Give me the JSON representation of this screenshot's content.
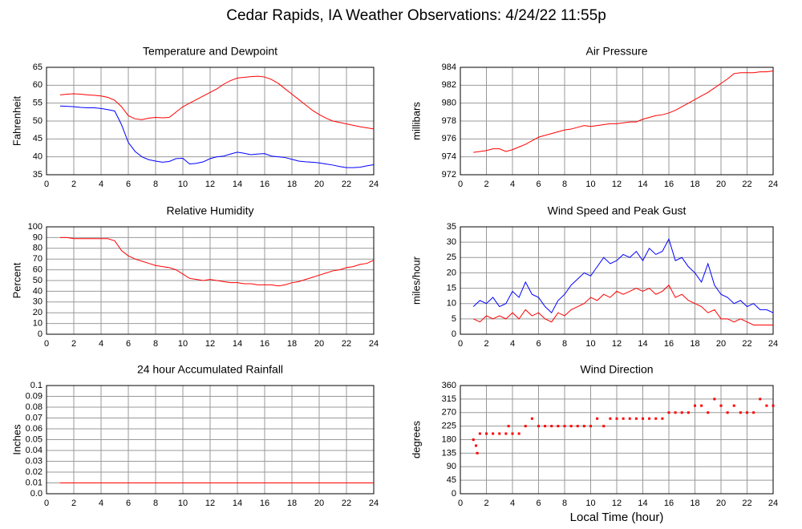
{
  "title": "Cedar Rapids, IA Weather Observations: 4/24/22 11:55p",
  "chart_data": [
    {
      "type": "line",
      "title": "Temperature and Dewpoint",
      "ylabel": "Fahrenheit",
      "grid": true,
      "xlim": [
        0,
        24
      ],
      "xticks": [
        0,
        2,
        4,
        6,
        8,
        10,
        12,
        14,
        16,
        18,
        20,
        22,
        24
      ],
      "ylim": [
        35,
        65
      ],
      "yticks": [
        35,
        40,
        45,
        50,
        55,
        60,
        65
      ],
      "x": [
        1,
        1.5,
        2,
        2.5,
        3,
        3.5,
        4,
        4.5,
        5,
        5.5,
        6,
        6.5,
        7,
        7.5,
        8,
        8.5,
        9,
        9.5,
        10,
        10.5,
        11,
        11.5,
        12,
        12.5,
        13,
        13.5,
        14,
        14.5,
        15,
        15.5,
        16,
        16.5,
        17,
        17.5,
        18,
        18.5,
        19,
        19.5,
        20,
        20.5,
        21,
        21.5,
        22,
        22.5,
        23,
        23.5,
        24
      ],
      "series": [
        {
          "name": "Temperature",
          "color": "#ff0000",
          "values": [
            57.3,
            57.5,
            57.6,
            57.5,
            57.3,
            57.2,
            57,
            56.6,
            55.8,
            54,
            51.5,
            50.6,
            50.4,
            50.8,
            51,
            50.9,
            51,
            52.5,
            54,
            55,
            56,
            57,
            58,
            59,
            60.3,
            61.3,
            62,
            62.2,
            62.4,
            62.5,
            62.3,
            61.6,
            60.5,
            59,
            57.5,
            56,
            54.5,
            53,
            51.8,
            50.8,
            50,
            49.6,
            49.2,
            48.8,
            48.4,
            48.1,
            47.8
          ]
        },
        {
          "name": "Dewpoint",
          "color": "#0000ff",
          "values": [
            54.2,
            54.1,
            54,
            53.8,
            53.7,
            53.7,
            53.5,
            53.2,
            52.8,
            49,
            44,
            41.5,
            40,
            39.2,
            38.8,
            38.5,
            38.7,
            39.5,
            39.6,
            38,
            38.2,
            38.6,
            39.5,
            40,
            40.2,
            40.8,
            41.3,
            41,
            40.6,
            40.8,
            40.9,
            40.2,
            40,
            39.8,
            39.3,
            38.8,
            38.6,
            38.5,
            38.3,
            38,
            37.7,
            37.3,
            37,
            37,
            37.1,
            37.5,
            37.8
          ]
        }
      ]
    },
    {
      "type": "line",
      "title": "Air Pressure",
      "ylabel": "millibars",
      "grid": true,
      "xlim": [
        0,
        24
      ],
      "xticks": [
        0,
        2,
        4,
        6,
        8,
        10,
        12,
        14,
        16,
        18,
        20,
        22,
        24
      ],
      "ylim": [
        972,
        984
      ],
      "yticks": [
        972,
        974,
        976,
        978,
        980,
        982,
        984
      ],
      "x": [
        1,
        1.5,
        2,
        2.5,
        3,
        3.5,
        4,
        4.5,
        5,
        5.5,
        6,
        6.5,
        7,
        7.5,
        8,
        8.5,
        9,
        9.5,
        10,
        10.5,
        11,
        11.5,
        12,
        12.5,
        13,
        13.5,
        14,
        14.5,
        15,
        15.5,
        16,
        16.5,
        17,
        17.5,
        18,
        18.5,
        19,
        19.5,
        20,
        20.5,
        21,
        21.5,
        22,
        22.5,
        23,
        23.5,
        24
      ],
      "series": [
        {
          "name": "Pressure",
          "color": "#ff0000",
          "values": [
            974.5,
            974.6,
            974.7,
            974.9,
            974.9,
            974.6,
            974.8,
            975.1,
            975.4,
            975.8,
            976.2,
            976.4,
            976.6,
            976.8,
            977,
            977.1,
            977.3,
            977.5,
            977.4,
            977.5,
            977.6,
            977.7,
            977.7,
            977.8,
            977.9,
            977.9,
            978.2,
            978.4,
            978.6,
            978.7,
            978.9,
            979.2,
            979.6,
            980,
            980.4,
            980.8,
            981.2,
            981.7,
            982.2,
            982.7,
            983.3,
            983.4,
            983.4,
            983.4,
            983.5,
            983.5,
            983.6
          ]
        }
      ]
    },
    {
      "type": "line",
      "title": "Relative Humidity",
      "ylabel": "Percent",
      "grid": true,
      "xlim": [
        0,
        24
      ],
      "xticks": [
        0,
        2,
        4,
        6,
        8,
        10,
        12,
        14,
        16,
        18,
        20,
        22,
        24
      ],
      "ylim": [
        0,
        100
      ],
      "yticks": [
        0,
        10,
        20,
        30,
        40,
        50,
        60,
        70,
        80,
        90,
        100
      ],
      "x": [
        1,
        1.5,
        2,
        2.5,
        3,
        3.5,
        4,
        4.5,
        5,
        5.5,
        6,
        6.5,
        7,
        7.5,
        8,
        8.5,
        9,
        9.5,
        10,
        10.5,
        11,
        11.5,
        12,
        12.5,
        13,
        13.5,
        14,
        14.5,
        15,
        15.5,
        16,
        16.5,
        17,
        17.5,
        18,
        18.5,
        19,
        19.5,
        20,
        20.5,
        21,
        21.5,
        22,
        22.5,
        23,
        23.5,
        24
      ],
      "series": [
        {
          "name": "Relative Humidity",
          "color": "#ff0000",
          "values": [
            90,
            90,
            89,
            89,
            89,
            89,
            89,
            89,
            87,
            78,
            73,
            70,
            68,
            66,
            64,
            63,
            62,
            60,
            56,
            52,
            51,
            50,
            51,
            50,
            49,
            48,
            48,
            47,
            47,
            46,
            46,
            46,
            45,
            46,
            48,
            49,
            51,
            53,
            55,
            57,
            59,
            60,
            62,
            63,
            65,
            66,
            69
          ]
        }
      ]
    },
    {
      "type": "line",
      "title": "Wind Speed and Peak Gust",
      "ylabel": "miles/hour",
      "grid": true,
      "xlim": [
        0,
        24
      ],
      "xticks": [
        0,
        2,
        4,
        6,
        8,
        10,
        12,
        14,
        16,
        18,
        20,
        22,
        24
      ],
      "ylim": [
        0,
        35
      ],
      "yticks": [
        0,
        5,
        10,
        15,
        20,
        25,
        30,
        35
      ],
      "x": [
        1,
        1.5,
        2,
        2.5,
        3,
        3.5,
        4,
        4.5,
        5,
        5.5,
        6,
        6.5,
        7,
        7.5,
        8,
        8.5,
        9,
        9.5,
        10,
        10.5,
        11,
        11.5,
        12,
        12.5,
        13,
        13.5,
        14,
        14.5,
        15,
        15.5,
        16,
        16.5,
        17,
        17.5,
        18,
        18.5,
        19,
        19.5,
        20,
        20.5,
        21,
        21.5,
        22,
        22.5,
        23,
        23.5,
        24
      ],
      "series": [
        {
          "name": "Peak Gust",
          "color": "#0000ff",
          "values": [
            9,
            11,
            10,
            12,
            9,
            10,
            14,
            12,
            17,
            13,
            12,
            9,
            7,
            11,
            13,
            16,
            18,
            20,
            19,
            22,
            25,
            23,
            24,
            26,
            25,
            27,
            24,
            28,
            26,
            27,
            31,
            24,
            25,
            22,
            20,
            17,
            23,
            16,
            13,
            12,
            10,
            11,
            9,
            10,
            8,
            8,
            7
          ]
        },
        {
          "name": "Wind Speed",
          "color": "#ff0000",
          "values": [
            5,
            4,
            6,
            5,
            6,
            5,
            7,
            5,
            8,
            6,
            7,
            5,
            4,
            7,
            6,
            8,
            9,
            10,
            12,
            11,
            13,
            12,
            14,
            13,
            14,
            15,
            14,
            15,
            13,
            14,
            16,
            12,
            13,
            11,
            10,
            9,
            7,
            8,
            5,
            5,
            4,
            5,
            4,
            3,
            3,
            3,
            3
          ]
        }
      ]
    },
    {
      "type": "line",
      "title": "24 hour Accumulated Rainfall",
      "ylabel": "Inches",
      "grid": true,
      "xlim": [
        0,
        24
      ],
      "xticks": [
        0,
        2,
        4,
        6,
        8,
        10,
        12,
        14,
        16,
        18,
        20,
        22,
        24
      ],
      "ylim": [
        0,
        0.1
      ],
      "yticks": [
        {
          "value": 0,
          "label": "0.0"
        },
        0.01,
        0.02,
        0.03,
        0.04,
        0.05,
        0.06,
        0.07,
        0.08,
        0.09,
        0.1
      ],
      "x": [
        1,
        24
      ],
      "series": [
        {
          "name": "Rainfall",
          "color": "#ff0000",
          "values": [
            0.01,
            0.01
          ]
        }
      ]
    },
    {
      "type": "scatter",
      "title": "Wind Direction",
      "ylabel": "degrees",
      "xlabel": "Local Time (hour)",
      "grid": true,
      "xlim": [
        0,
        24
      ],
      "xticks": [
        0,
        2,
        4,
        6,
        8,
        10,
        12,
        14,
        16,
        18,
        20,
        22,
        24
      ],
      "ylim": [
        0,
        360
      ],
      "yticks": [
        0,
        45,
        90,
        135,
        180,
        225,
        270,
        315,
        360
      ],
      "x": [
        1,
        1.2,
        1.3,
        1.5,
        2,
        2.5,
        3,
        3.5,
        3.7,
        4,
        4.5,
        5,
        5.5,
        6,
        6.5,
        7,
        7.5,
        8,
        8.5,
        9,
        9.5,
        10,
        10.5,
        11,
        11.5,
        12,
        12.5,
        13,
        13.5,
        14,
        14.5,
        15,
        15.5,
        16,
        16.5,
        17,
        17.5,
        18,
        18.5,
        19,
        19.5,
        20,
        20.5,
        21,
        21.5,
        22,
        22.5,
        23,
        23.5,
        24
      ],
      "series": [
        {
          "name": "Wind Direction",
          "color": "#ff0000",
          "values": [
            180,
            160,
            135,
            200,
            200,
            200,
            200,
            200,
            225,
            200,
            200,
            225,
            250,
            225,
            225,
            225,
            225,
            225,
            225,
            225,
            225,
            225,
            250,
            225,
            250,
            250,
            250,
            250,
            250,
            250,
            250,
            250,
            250,
            270,
            270,
            270,
            270,
            293,
            293,
            270,
            315,
            293,
            270,
            293,
            270,
            270,
            270,
            315,
            293,
            293
          ]
        }
      ]
    }
  ]
}
